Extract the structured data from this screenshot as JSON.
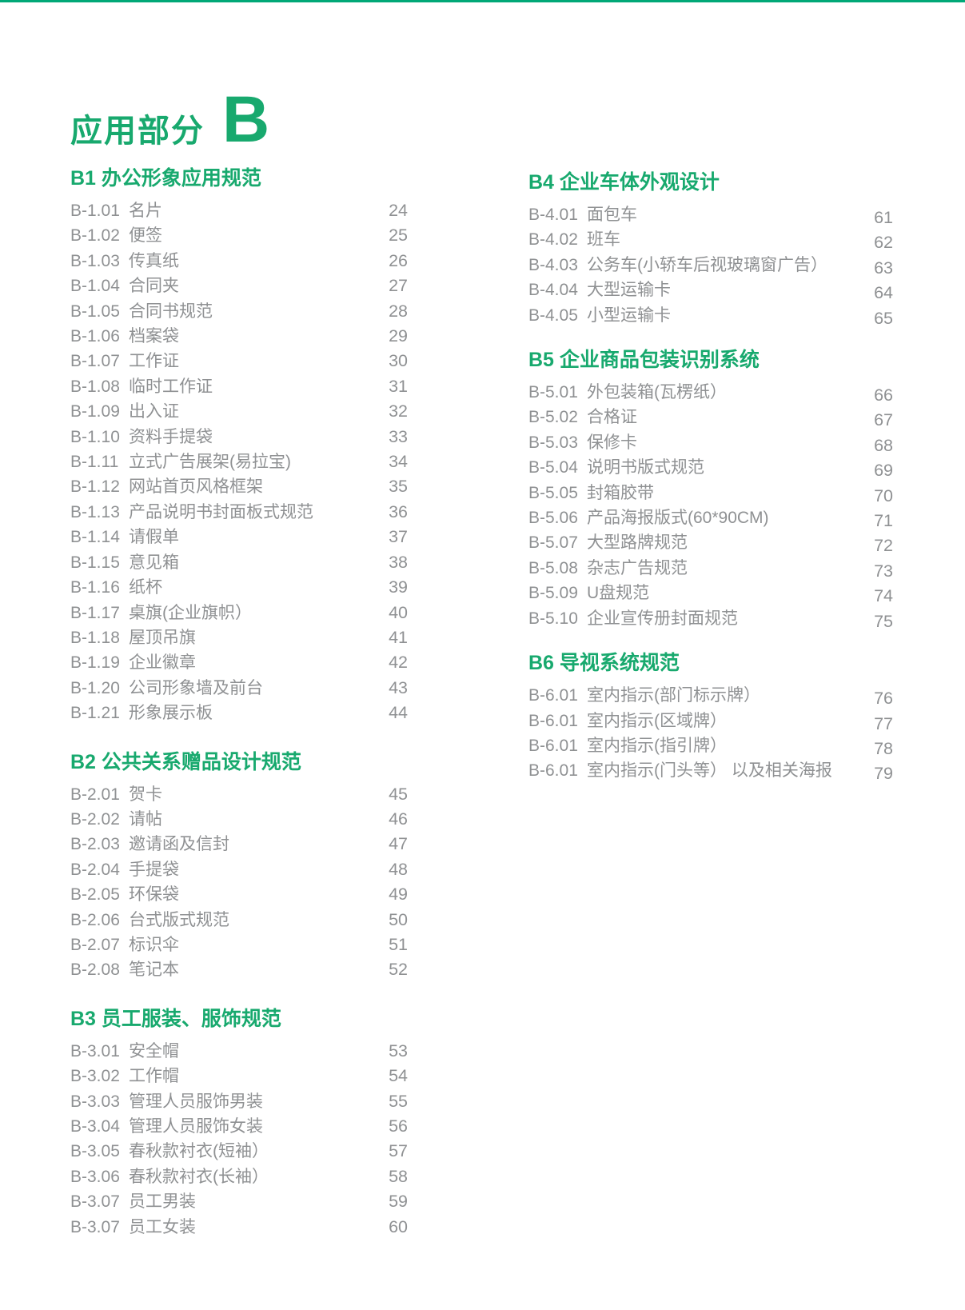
{
  "theme": {
    "top_bar_color": "#00a877",
    "accent_color": "#18a96e",
    "item_text_color": "#8f9193",
    "background_color": "#ffffff"
  },
  "document": {
    "title": {
      "text": "应用部分",
      "section_letter": "B"
    }
  },
  "toc": {
    "columns": [
      {
        "side": "left",
        "sections": [
          {
            "heading": "B1 办公形象应用规范",
            "items": [
              {
                "code": "B-1.01",
                "label": "名片",
                "page": "24"
              },
              {
                "code": "B-1.02",
                "label": "便签",
                "page": "25"
              },
              {
                "code": "B-1.03",
                "label": "传真纸",
                "page": "26"
              },
              {
                "code": "B-1.04",
                "label": "合同夹",
                "page": "27"
              },
              {
                "code": "B-1.05",
                "label": "合同书规范",
                "page": "28"
              },
              {
                "code": "B-1.06",
                "label": "档案袋",
                "page": "29"
              },
              {
                "code": "B-1.07",
                "label": "工作证",
                "page": "30"
              },
              {
                "code": "B-1.08",
                "label": "临时工作证",
                "page": "31"
              },
              {
                "code": "B-1.09",
                "label": "出入证",
                "page": "32"
              },
              {
                "code": "B-1.10",
                "label": "资料手提袋",
                "page": "33"
              },
              {
                "code": "B-1.11",
                "label": "立式广告展架(易拉宝)",
                "page": "34"
              },
              {
                "code": "B-1.12",
                "label": "网站首页风格框架",
                "page": "35"
              },
              {
                "code": "B-1.13",
                "label": "产品说明书封面板式规范",
                "page": "36"
              },
              {
                "code": "B-1.14",
                "label": "请假单",
                "page": "37"
              },
              {
                "code": "B-1.15",
                "label": "意见箱",
                "page": "38"
              },
              {
                "code": "B-1.16",
                "label": "纸杯",
                "page": "39"
              },
              {
                "code": "B-1.17",
                "label": "桌旗(企业旗帜）",
                "page": "40"
              },
              {
                "code": "B-1.18",
                "label": "屋顶吊旗",
                "page": "41"
              },
              {
                "code": "B-1.19",
                "label": "企业徽章",
                "page": "42"
              },
              {
                "code": "B-1.20",
                "label": "公司形象墙及前台",
                "page": "43"
              },
              {
                "code": "B-1.21",
                "label": "形象展示板",
                "page": "44"
              }
            ]
          },
          {
            "heading": "B2 公共关系赠品设计规范",
            "items": [
              {
                "code": "B-2.01",
                "label": "贺卡",
                "page": "45"
              },
              {
                "code": "B-2.02",
                "label": "请帖",
                "page": "46"
              },
              {
                "code": "B-2.03",
                "label": "邀请函及信封",
                "page": "47"
              },
              {
                "code": "B-2.04",
                "label": "手提袋",
                "page": "48"
              },
              {
                "code": "B-2.05",
                "label": "环保袋",
                "page": "49"
              },
              {
                "code": "B-2.06",
                "label": "台式版式规范",
                "page": "50"
              },
              {
                "code": "B-2.07",
                "label": "标识伞",
                "page": "51"
              },
              {
                "code": "B-2.08",
                "label": "笔记本",
                "page": "52"
              }
            ]
          },
          {
            "heading": "B3 员工服装、服饰规范",
            "items": [
              {
                "code": "B-3.01",
                "label": "安全帽",
                "page": "53"
              },
              {
                "code": "B-3.02",
                "label": "工作帽",
                "page": "54"
              },
              {
                "code": "B-3.03",
                "label": "管理人员服饰男装",
                "page": "55"
              },
              {
                "code": "B-3.04",
                "label": "管理人员服饰女装",
                "page": "56"
              },
              {
                "code": "B-3.05",
                "label": "春秋款衬衣(短袖）",
                "page": "57"
              },
              {
                "code": "B-3.06",
                "label": "春秋款衬衣(长袖）",
                "page": "58"
              },
              {
                "code": "B-3.07",
                "label": "员工男装",
                "page": "59"
              },
              {
                "code": "B-3.07",
                "label": "员工女装",
                "page": "60"
              }
            ]
          }
        ]
      },
      {
        "side": "right",
        "sections": [
          {
            "heading": "B4 企业车体外观设计",
            "items": [
              {
                "code": "B-4.01",
                "label": "面包车",
                "page": "61"
              },
              {
                "code": "B-4.02",
                "label": "班车",
                "page": "62"
              },
              {
                "code": "B-4.03",
                "label": "公务车(小轿车后视玻璃窗广告）",
                "page": "63"
              },
              {
                "code": "B-4.04",
                "label": "大型运输卡",
                "page": "64"
              },
              {
                "code": "B-4.05",
                "label": "小型运输卡",
                "page": "65"
              }
            ]
          },
          {
            "heading": "B5 企业商品包装识别系统",
            "items": [
              {
                "code": "B-5.01",
                "label": "外包装箱(瓦楞纸）",
                "page": "66"
              },
              {
                "code": "B-5.02",
                "label": "合格证",
                "page": "67"
              },
              {
                "code": "B-5.03",
                "label": "保修卡",
                "page": "68"
              },
              {
                "code": "B-5.04",
                "label": "说明书版式规范",
                "page": "69"
              },
              {
                "code": "B-5.05",
                "label": "封箱胶带",
                "page": "70"
              },
              {
                "code": "B-5.06",
                "label": "产品海报版式(60*90CM)",
                "page": "71"
              },
              {
                "code": "B-5.07",
                "label": "大型路牌规范",
                "page": "72"
              },
              {
                "code": "B-5.08",
                "label": "杂志广告规范",
                "page": "73"
              },
              {
                "code": "B-5.09",
                "label": "U盘规范",
                "page": "74"
              },
              {
                "code": "B-5.10",
                "label": "企业宣传册封面规范",
                "page": "75"
              }
            ]
          },
          {
            "heading": "B6 导视系统规范",
            "items": [
              {
                "code": "B-6.01",
                "label": "室内指示(部门标示牌）",
                "page": "76"
              },
              {
                "code": "B-6.01",
                "label": "室内指示(区域牌）",
                "page": "77"
              },
              {
                "code": "B-6.01",
                "label": "室内指示(指引牌）",
                "page": "78"
              },
              {
                "code": "B-6.01",
                "label": "室内指示(门头等） 以及相关海报",
                "page": "79"
              }
            ]
          }
        ]
      }
    ]
  }
}
